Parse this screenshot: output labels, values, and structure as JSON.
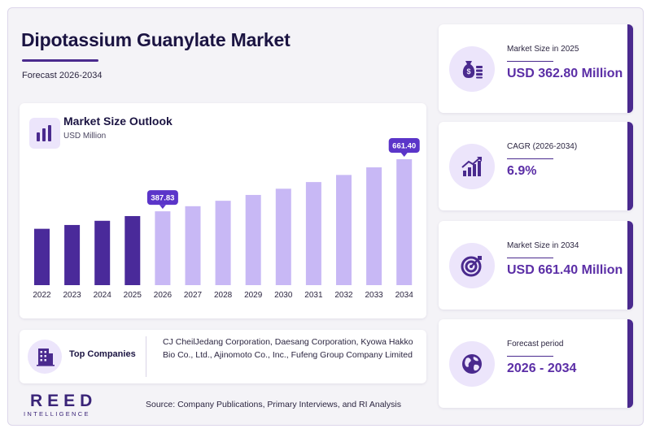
{
  "header": {
    "title": "Dipotassium Guanylate Market",
    "subtitle": "Forecast 2026-2034"
  },
  "chart_card": {
    "title": "Market Size Outlook",
    "unit": "USD Million",
    "icon": "bar-chart-icon"
  },
  "chart_data": {
    "type": "bar",
    "title": "Market Size Outlook",
    "ylabel": "USD Million",
    "categories": [
      "2022",
      "2023",
      "2024",
      "2025",
      "2026",
      "2027",
      "2028",
      "2029",
      "2030",
      "2031",
      "2032",
      "2033",
      "2034"
    ],
    "values": [
      296,
      316,
      338,
      362.8,
      387.83,
      414.6,
      443.2,
      473.8,
      506.5,
      541.4,
      578.8,
      618.7,
      661.4
    ],
    "ylim": [
      0,
      700
    ],
    "grid": false,
    "callouts": [
      {
        "category": "2026",
        "label": "387.83"
      },
      {
        "category": "2034",
        "label": "661.40"
      }
    ],
    "colors": {
      "historical": "#4a2a9a",
      "forecast": "#c8b8f5",
      "callout": "#5b35c9"
    }
  },
  "companies": {
    "label": "Top Companies",
    "text": "CJ CheilJedang Corporation, Daesang Corporation, Kyowa Hakko Bio Co., Ltd., Ajinomoto Co., Inc., Fufeng Group Company Limited",
    "icon": "building-icon"
  },
  "brand": {
    "name": "REED",
    "tagline": "INTELLIGENCE"
  },
  "source": "Source: Company Publications, Primary Interviews, and RI Analysis",
  "stats": [
    {
      "label": "Market Size in 2025",
      "value": "USD 362.80 Million",
      "icon": "money-bag-icon"
    },
    {
      "label": "CAGR (2026-2034)",
      "value": "6.9%",
      "icon": "growth-chart-icon"
    },
    {
      "label": "Market Size in 2034",
      "value": "USD 661.40 Million",
      "icon": "target-icon"
    },
    {
      "label": "Forecast period",
      "value": "2026 - 2034",
      "icon": "globe-icon"
    }
  ],
  "theme": {
    "accent": "#4a2a8e",
    "value_color": "#5b2ea6",
    "icon_bg": "#ece5fb"
  }
}
